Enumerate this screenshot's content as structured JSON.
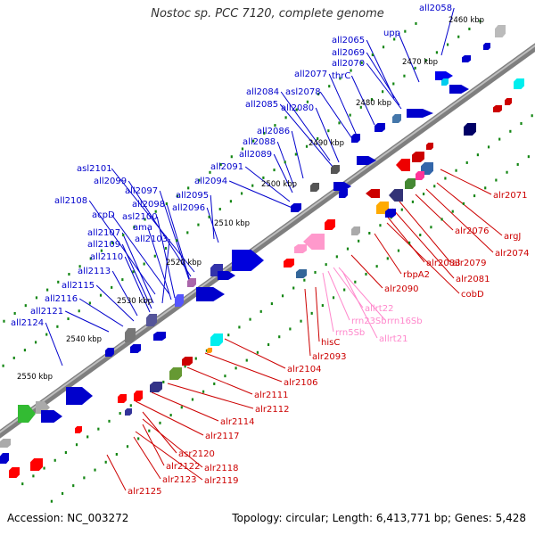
{
  "title": "Nostoc sp. PCC 7120, complete genome",
  "accession_text": "Accession: NC_003272",
  "topology_text": "Topology: circular; Length: 6,413,771 bp; Genes: 5,428",
  "colors": {
    "upper_label": "#0000cc",
    "lower_label": "#cc0000",
    "rna_label": "#ff88cc",
    "backbone": "#7f7f7f",
    "tick": "#138613"
  },
  "scale_labels": [
    "2460 kbp",
    "2470 kbp",
    "2480 kbp",
    "2490 kbp",
    "2500 kbp",
    "2510 kbp",
    "2520 kbp",
    "2530 kbp",
    "2540 kbp",
    "2550 kbp"
  ],
  "upper_genes": [
    "all2058",
    "upp",
    "all2065",
    "all2069",
    "all2070",
    "thrC",
    "all2077",
    "asl2078",
    "all2084",
    "all2085",
    "all2080",
    "all2086",
    "all2088",
    "all2089",
    "all2091",
    "all2094",
    "all2095",
    "all2096",
    "asl2101",
    "all2099",
    "all2097",
    "all2098",
    "all2108",
    "acpD",
    "asl2100",
    "ama",
    "all2107",
    "all2103",
    "all2109",
    "all2110",
    "all2113",
    "all2115",
    "all2116",
    "all2121",
    "all2124"
  ],
  "lower_genes": [
    "alr2071",
    "argJ",
    "alr2074",
    "alr2076",
    "alr2079",
    "alr2081",
    "alr2083",
    "cobD",
    "rbpA2",
    "alr2090",
    "hisC",
    "alr2093",
    "alr2104",
    "alr2106",
    "alr2111",
    "alr2112",
    "alr2114",
    "alr2117",
    "asr2120",
    "alr2118",
    "alr2122",
    "alr2119",
    "alr2123",
    "alr2125"
  ],
  "rna_genes": [
    "allrt22",
    "rrn23Sb",
    "rrn16Sb",
    "rrn5Sb",
    "allrt21"
  ]
}
